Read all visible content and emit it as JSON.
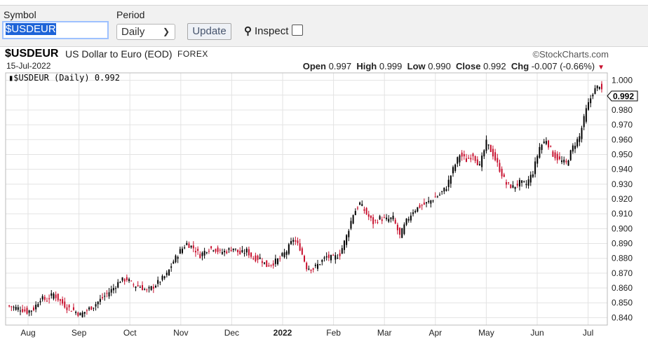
{
  "controls": {
    "symbol_label": "Symbol",
    "symbol_value": "$USDEUR",
    "period_label": "Period",
    "period_value": "Daily",
    "update_label": "Update",
    "inspect_label": "Inspect",
    "inspect_checked": false
  },
  "chart_header": {
    "symbol": "$USDEUR",
    "name": "US Dollar to Euro (EOD)",
    "exchange": "FOREX",
    "date": "15-Jul-2022",
    "credit": "©StockCharts.com",
    "open_label": "Open",
    "open": "0.997",
    "high_label": "High",
    "high": "0.999",
    "low_label": "Low",
    "low": "0.990",
    "close_label": "Close",
    "close": "0.992",
    "chg_label": "Chg",
    "chg": "-0.007 (-0.66%)",
    "legend": "$USDEUR (Daily) 0.992",
    "last_value": "0.992"
  },
  "colors": {
    "up": "#000000",
    "down": "#c8102e",
    "grid": "#e3e3e3"
  },
  "chart_data": {
    "type": "line",
    "ylim": [
      0.835,
      1.005
    ],
    "y_ticks": [
      "1.000",
      "0.990",
      "0.980",
      "0.970",
      "0.960",
      "0.950",
      "0.940",
      "0.930",
      "0.920",
      "0.910",
      "0.900",
      "0.890",
      "0.880",
      "0.870",
      "0.860",
      "0.850",
      "0.840"
    ],
    "x_ticks": [
      "Aug",
      "Sep",
      "Oct",
      "Nov",
      "Dec",
      "2022",
      "Feb",
      "Mar",
      "Apr",
      "May",
      "Jun",
      "Jul"
    ],
    "x_ticks_bold": [
      "2022"
    ],
    "series": [
      {
        "points": [
          [
            0,
            0.848
          ],
          [
            3,
            0.847
          ],
          [
            6,
            0.846
          ],
          [
            9,
            0.844
          ],
          [
            12,
            0.846
          ],
          [
            15,
            0.853
          ],
          [
            18,
            0.852
          ],
          [
            21,
            0.856
          ],
          [
            24,
            0.851
          ],
          [
            27,
            0.847
          ],
          [
            30,
            0.845
          ],
          [
            33,
            0.842
          ],
          [
            36,
            0.845
          ],
          [
            39,
            0.848
          ],
          [
            42,
            0.852
          ],
          [
            45,
            0.856
          ],
          [
            48,
            0.86
          ],
          [
            51,
            0.865
          ],
          [
            54,
            0.866
          ],
          [
            57,
            0.862
          ],
          [
            60,
            0.861
          ],
          [
            63,
            0.858
          ],
          [
            66,
            0.861
          ],
          [
            69,
            0.865
          ],
          [
            72,
            0.869
          ],
          [
            75,
            0.878
          ],
          [
            78,
            0.885
          ],
          [
            81,
            0.89
          ],
          [
            84,
            0.887
          ],
          [
            87,
            0.882
          ],
          [
            90,
            0.886
          ],
          [
            93,
            0.887
          ],
          [
            96,
            0.884
          ],
          [
            99,
            0.885
          ],
          [
            102,
            0.887
          ],
          [
            105,
            0.883
          ],
          [
            108,
            0.885
          ],
          [
            111,
            0.88
          ],
          [
            114,
            0.88
          ],
          [
            117,
            0.875
          ],
          [
            120,
            0.877
          ],
          [
            123,
            0.88
          ],
          [
            126,
            0.885
          ],
          [
            129,
            0.893
          ],
          [
            132,
            0.887
          ],
          [
            135,
            0.874
          ],
          [
            138,
            0.873
          ],
          [
            141,
            0.877
          ],
          [
            144,
            0.881
          ],
          [
            147,
            0.88
          ],
          [
            150,
            0.883
          ],
          [
            153,
            0.895
          ],
          [
            156,
            0.91
          ],
          [
            159,
            0.917
          ],
          [
            162,
            0.91
          ],
          [
            165,
            0.904
          ],
          [
            168,
            0.907
          ],
          [
            171,
            0.906
          ],
          [
            174,
            0.907
          ],
          [
            177,
            0.895
          ],
          [
            180,
            0.905
          ],
          [
            183,
            0.912
          ],
          [
            186,
            0.915
          ],
          [
            189,
            0.917
          ],
          [
            192,
            0.92
          ],
          [
            195,
            0.923
          ],
          [
            198,
            0.928
          ],
          [
            201,
            0.94
          ],
          [
            204,
            0.95
          ],
          [
            207,
            0.946
          ],
          [
            210,
            0.95
          ],
          [
            213,
            0.942
          ],
          [
            216,
            0.958
          ],
          [
            219,
            0.95
          ],
          [
            222,
            0.94
          ],
          [
            225,
            0.93
          ],
          [
            228,
            0.928
          ],
          [
            231,
            0.931
          ],
          [
            234,
            0.93
          ],
          [
            237,
            0.938
          ],
          [
            240,
            0.955
          ],
          [
            243,
            0.96
          ],
          [
            246,
            0.95
          ],
          [
            249,
            0.946
          ],
          [
            252,
            0.944
          ],
          [
            255,
            0.955
          ],
          [
            258,
            0.962
          ],
          [
            261,
            0.98
          ],
          [
            264,
            0.992
          ],
          [
            267,
            0.997
          ],
          [
            268,
            0.992
          ]
        ]
      }
    ]
  }
}
